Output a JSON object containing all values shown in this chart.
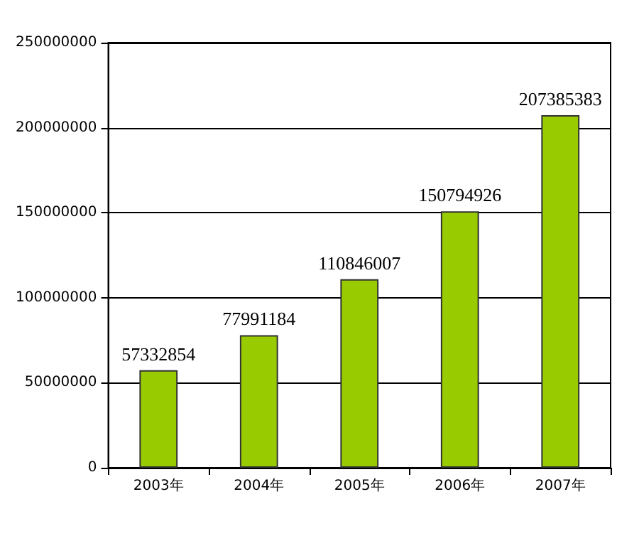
{
  "chart_data": {
    "type": "bar",
    "categories": [
      "2003年",
      "2004年",
      "2005年",
      "2006年",
      "2007年"
    ],
    "values": [
      57332854,
      77991184,
      110846007,
      150794926,
      207385383
    ],
    "color": "#99cc00",
    "ylim": [
      0,
      250000000
    ],
    "yticks": [
      0,
      50000000,
      100000000,
      150000000,
      200000000,
      250000000
    ],
    "grid": "y",
    "data_labels": true
  }
}
